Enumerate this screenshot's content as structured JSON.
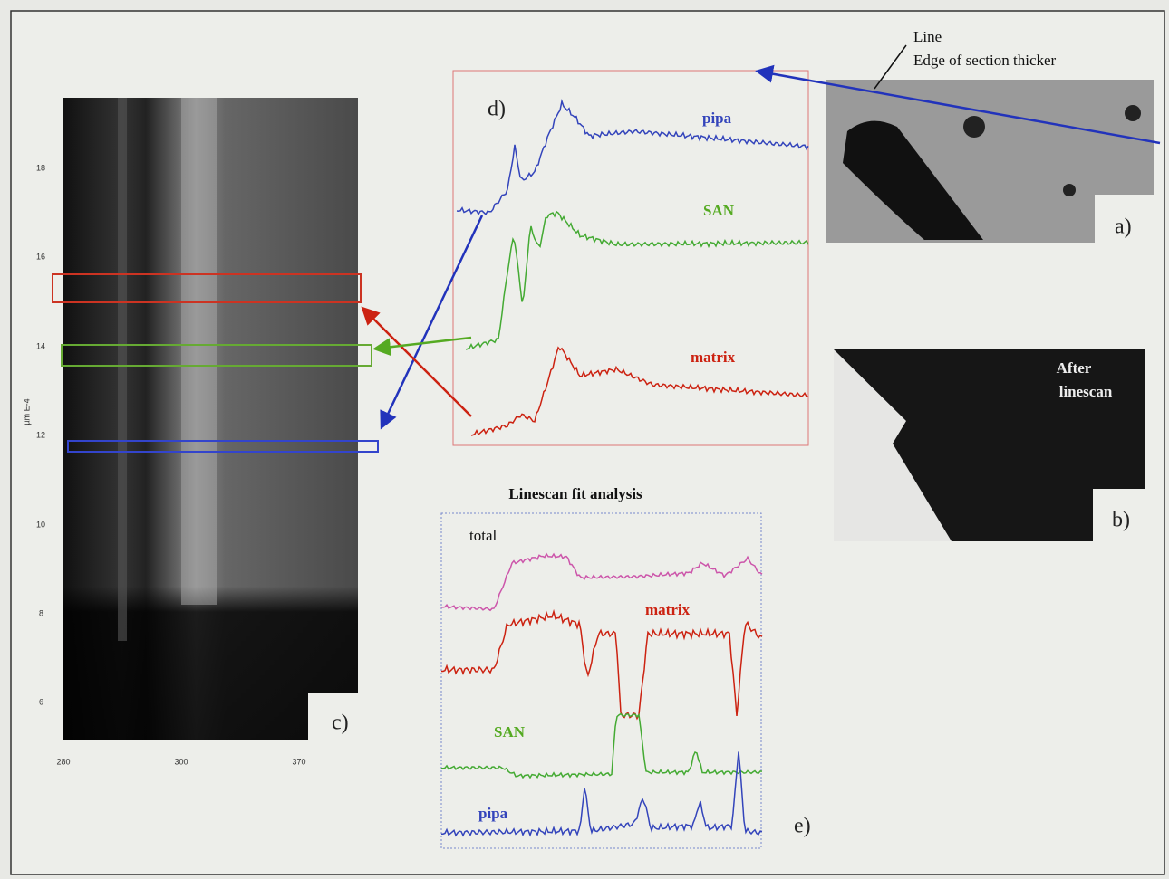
{
  "figure": {
    "panel_a": {
      "label": "a)",
      "annotation_line": "Line",
      "annotation_edge": "Edge of section thicker"
    },
    "panel_b": {
      "label": "b)",
      "text_line1": "After",
      "text_line2": "linescan"
    },
    "panel_c": {
      "label": "c)",
      "axis_label": "µm E-4",
      "yticks": [
        "18",
        "16",
        "14",
        "12",
        "10",
        "8",
        "6"
      ],
      "xticks": [
        "280",
        "300",
        "370"
      ]
    },
    "panel_d": {
      "label": "d)",
      "curves": [
        "pipa",
        "SAN",
        "matrix"
      ]
    },
    "panel_e": {
      "title": "Linescan fit analysis",
      "label": "e)",
      "curves": [
        "total",
        "matrix",
        "SAN",
        "pipa"
      ]
    }
  }
}
